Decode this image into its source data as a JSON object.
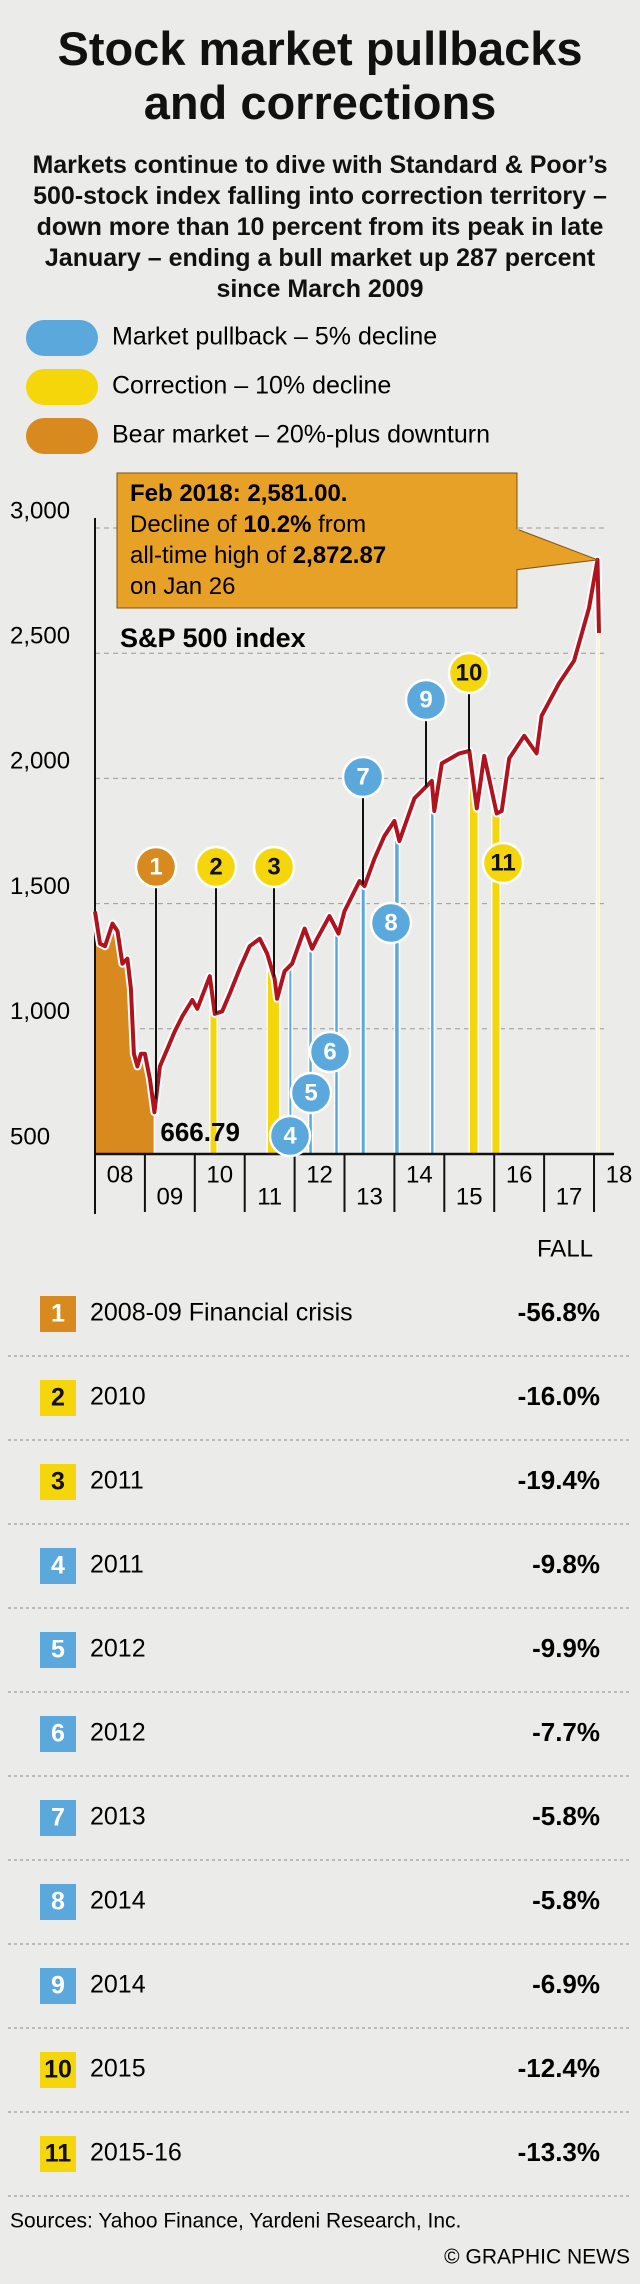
{
  "title": "Stock market pullbacks and corrections",
  "subtitle": "Markets continue to dive with Standard & Poor’s 500-stock index falling into correction territory – down more than 10 percent from its peak in late January – ending a bull market up 287 percent since March 2009",
  "chart_data": {
    "type": "line",
    "legend": [
      {
        "label": "Market pullback – 5% decline",
        "color": "#5aa8dc"
      },
      {
        "label": "Correction – 10% decline",
        "color": "#f5d60a"
      },
      {
        "label": "Bear market – 20%-plus downturn",
        "color": "#d98a1e"
      }
    ],
    "x": [
      2008.0,
      2008.1,
      2008.2,
      2008.35,
      2008.45,
      2008.55,
      2008.65,
      2008.72,
      2008.78,
      2008.85,
      2008.92,
      2009.0,
      2009.1,
      2009.19,
      2009.3,
      2009.45,
      2009.6,
      2009.75,
      2009.95,
      2010.05,
      2010.3,
      2010.4,
      2010.55,
      2010.7,
      2010.9,
      2011.1,
      2011.3,
      2011.45,
      2011.6,
      2011.65,
      2011.8,
      2011.95,
      2012.2,
      2012.35,
      2012.45,
      2012.7,
      2012.88,
      2013.0,
      2013.3,
      2013.4,
      2013.6,
      2013.8,
      2014.0,
      2014.1,
      2014.4,
      2014.75,
      2014.8,
      2014.95,
      2015.3,
      2015.5,
      2015.65,
      2015.8,
      2016.05,
      2016.15,
      2016.3,
      2016.6,
      2016.85,
      2016.95,
      2017.3,
      2017.6,
      2017.9,
      2018.07,
      2018.1
    ],
    "series": [
      {
        "name": "S&P 500 index",
        "color": "#b0131e",
        "values": [
          1468,
          1340,
          1330,
          1420,
          1390,
          1260,
          1280,
          1160,
          900,
          850,
          900,
          900,
          800,
          666.79,
          850,
          920,
          990,
          1050,
          1115,
          1080,
          1210,
          1060,
          1070,
          1140,
          1240,
          1330,
          1360,
          1300,
          1200,
          1120,
          1230,
          1260,
          1400,
          1320,
          1360,
          1450,
          1380,
          1470,
          1590,
          1570,
          1680,
          1770,
          1830,
          1750,
          1920,
          1990,
          1870,
          2060,
          2100,
          2110,
          1880,
          2090,
          1860,
          1870,
          2080,
          2170,
          2100,
          2250,
          2380,
          2470,
          2680,
          2872.87,
          2581
        ]
      }
    ],
    "xlim": [
      2008,
      2018.2
    ],
    "ylim": [
      500,
      3000
    ],
    "xticks": [
      {
        "value": 2008,
        "label": "08"
      },
      {
        "value": 2009,
        "label": "09"
      },
      {
        "value": 2010,
        "label": "10"
      },
      {
        "value": 2011,
        "label": "11"
      },
      {
        "value": 2012,
        "label": "12"
      },
      {
        "value": 2013,
        "label": "13"
      },
      {
        "value": 2014,
        "label": "14"
      },
      {
        "value": 2015,
        "label": "15"
      },
      {
        "value": 2016,
        "label": "16"
      },
      {
        "value": 2017,
        "label": "17"
      },
      {
        "value": 2018,
        "label": "18"
      }
    ],
    "yticks": [
      500,
      {
        "value": 1000,
        "label": "1,000"
      },
      {
        "value": 1500,
        "label": "1,500"
      },
      {
        "value": 2000,
        "label": "2,000"
      },
      {
        "value": 2500,
        "label": "2,500"
      },
      {
        "value": 3000,
        "label": "3,000"
      }
    ],
    "grid": true,
    "events": [
      {
        "label": "1",
        "start": 2008.0,
        "end": 2009.19,
        "color": "#d98a1e"
      },
      {
        "label": "2",
        "start": 2010.3,
        "end": 2010.45,
        "color": "#f5d60a"
      },
      {
        "label": "3",
        "start": 2011.45,
        "end": 2011.7,
        "color": "#f5d60a"
      },
      {
        "label": "4",
        "start": 2011.88,
        "end": 2011.95,
        "color": "#5aa8dc"
      },
      {
        "label": "5",
        "start": 2012.28,
        "end": 2012.36,
        "color": "#5aa8dc"
      },
      {
        "label": "6",
        "start": 2012.8,
        "end": 2012.88,
        "color": "#5aa8dc"
      },
      {
        "label": "7",
        "start": 2013.33,
        "end": 2013.42,
        "color": "#5aa8dc"
      },
      {
        "label": "8",
        "start": 2014.0,
        "end": 2014.1,
        "color": "#5aa8dc"
      },
      {
        "label": "9",
        "start": 2014.72,
        "end": 2014.8,
        "color": "#5aa8dc"
      },
      {
        "label": "10",
        "start": 2015.5,
        "end": 2015.68,
        "color": "#f5d60a"
      },
      {
        "label": "11",
        "start": 2015.95,
        "end": 2016.12,
        "color": "#f5d60a"
      }
    ],
    "current": {
      "start": 2018.06,
      "end": 2018.1,
      "color": "#f5d60a"
    },
    "annotations": [
      {
        "x": 2009.19,
        "value": 666.79
      }
    ],
    "callout": {
      "peak_x": 2018.07,
      "peak": 2872.87,
      "color": "#e7a127",
      "lines": [
        [
          {
            "text": "Feb 2018: 2,581.00.",
            "bold": true
          }
        ],
        [
          {
            "text": "Decline of ",
            "bold": false
          },
          {
            "text": "10.2%",
            "bold": true
          },
          {
            "text": " from",
            "bold": false
          }
        ],
        [
          {
            "text": "all-time high of ",
            "bold": false
          },
          {
            "text": "2,872.87",
            "bold": true
          }
        ],
        [
          {
            "text": "on Jan 26",
            "bold": false
          }
        ]
      ]
    }
  },
  "table": {
    "header": "FALL",
    "rows": [
      [
        "2008-09 Financial crisis",
        "-56.8%"
      ],
      [
        "2010",
        "-16.0%"
      ],
      [
        "2011",
        "-19.4%"
      ],
      [
        "2011",
        "-9.8%"
      ],
      [
        "2012",
        "-9.9%"
      ],
      [
        "2012",
        "-7.7%"
      ],
      [
        "2013",
        "-5.8%"
      ],
      [
        "2014",
        "-5.8%"
      ],
      [
        "2014",
        "-6.9%"
      ],
      [
        "2015",
        "-12.4%"
      ],
      [
        "2015-16",
        "-13.3%"
      ]
    ]
  },
  "source": "Sources: Yahoo Finance, Yardeni Research, Inc.",
  "credit": "© GRAPHIC NEWS"
}
